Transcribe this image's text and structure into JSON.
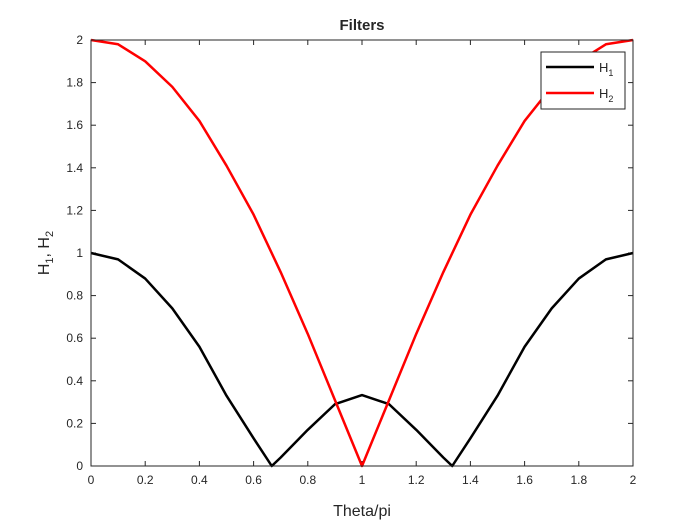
{
  "chart_data": {
    "type": "line",
    "title": "Filters",
    "xlabel": "Theta/pi",
    "ylabel": {
      "base1": "H",
      "sub1": "1",
      "sep": ", ",
      "base2": "H",
      "sub2": "2"
    },
    "xlim": [
      0,
      2
    ],
    "ylim": [
      0,
      2
    ],
    "xticks": [
      "0",
      "0.2",
      "0.4",
      "0.6",
      "0.8",
      "1",
      "1.2",
      "1.4",
      "1.6",
      "1.8",
      "2"
    ],
    "yticks": [
      "0",
      "0.2",
      "0.4",
      "0.6",
      "0.8",
      "1",
      "1.2",
      "1.4",
      "1.6",
      "1.8",
      "2"
    ],
    "grid": false,
    "legend_position": "top-right",
    "series": [
      {
        "name": {
          "base": "H",
          "sub": "1"
        },
        "color": "#000000",
        "x": [
          0,
          0.1,
          0.2,
          0.3,
          0.4,
          0.5,
          0.6,
          0.667,
          0.7,
          0.8,
          0.9,
          1.0,
          1.1,
          1.2,
          1.3,
          1.333,
          1.4,
          1.5,
          1.6,
          1.7,
          1.8,
          1.9,
          2.0
        ],
        "y": [
          1.0,
          0.97,
          0.88,
          0.74,
          0.56,
          0.33,
          0.13,
          0.0,
          0.04,
          0.17,
          0.29,
          0.333,
          0.29,
          0.17,
          0.04,
          0.0,
          0.13,
          0.33,
          0.56,
          0.74,
          0.88,
          0.97,
          1.0
        ]
      },
      {
        "name": {
          "base": "H",
          "sub": "2"
        },
        "color": "#ff0000",
        "x": [
          0,
          0.1,
          0.2,
          0.3,
          0.4,
          0.5,
          0.6,
          0.7,
          0.8,
          0.9,
          1.0,
          1.1,
          1.2,
          1.3,
          1.4,
          1.5,
          1.6,
          1.7,
          1.8,
          1.9,
          2.0
        ],
        "y": [
          2.0,
          1.98,
          1.9,
          1.78,
          1.62,
          1.41,
          1.18,
          0.91,
          0.62,
          0.31,
          0.0,
          0.31,
          0.62,
          0.91,
          1.18,
          1.41,
          1.62,
          1.78,
          1.9,
          1.98,
          2.0
        ]
      }
    ]
  }
}
